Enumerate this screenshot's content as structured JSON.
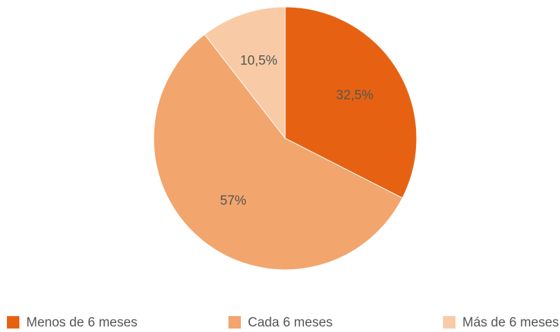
{
  "chart_data": {
    "type": "pie",
    "categories": [
      "Menos de 6 meses",
      "Cada 6 meses",
      "Más de 6 meses"
    ],
    "values": [
      32.5,
      57,
      10.5
    ],
    "value_labels": [
      "32,5%",
      "57%",
      "10,5%"
    ],
    "colors": [
      "#e66212",
      "#f2a56d",
      "#f8cba6"
    ],
    "legend": "bottom"
  }
}
